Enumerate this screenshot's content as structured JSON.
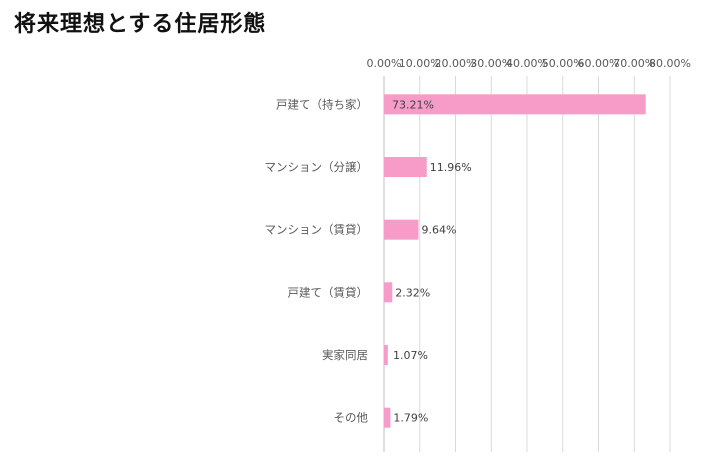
{
  "title": "将来理想とする住居形態",
  "chart_data": {
    "type": "bar",
    "orientation": "horizontal",
    "title": "将来理想とする住居形態",
    "categories": [
      "戸建て（持ち家）",
      "マンション（分譲）",
      "マンション（賃貸）",
      "戸建て（賃貸）",
      "実家同居",
      "その他"
    ],
    "values": [
      73.21,
      11.96,
      9.64,
      2.32,
      1.07,
      1.79
    ],
    "data_labels": [
      "73.21%",
      "11.96%",
      "9.64%",
      "2.32%",
      "1.07%",
      "1.79%"
    ],
    "xlim": [
      0,
      80
    ],
    "xticks": [
      0,
      10,
      20,
      30,
      40,
      50,
      60,
      70,
      80
    ],
    "xtick_labels": [
      "0.00%",
      "10.00%",
      "20.00%",
      "30.00%",
      "40.00%",
      "50.00%",
      "60.00%",
      "70.00%",
      "80.00%"
    ],
    "x_axis_position": "top",
    "grid": true,
    "legend": "none",
    "bar_color": "#f79bc8",
    "grid_color": "#d9d9d9",
    "label_color": "#595959"
  }
}
